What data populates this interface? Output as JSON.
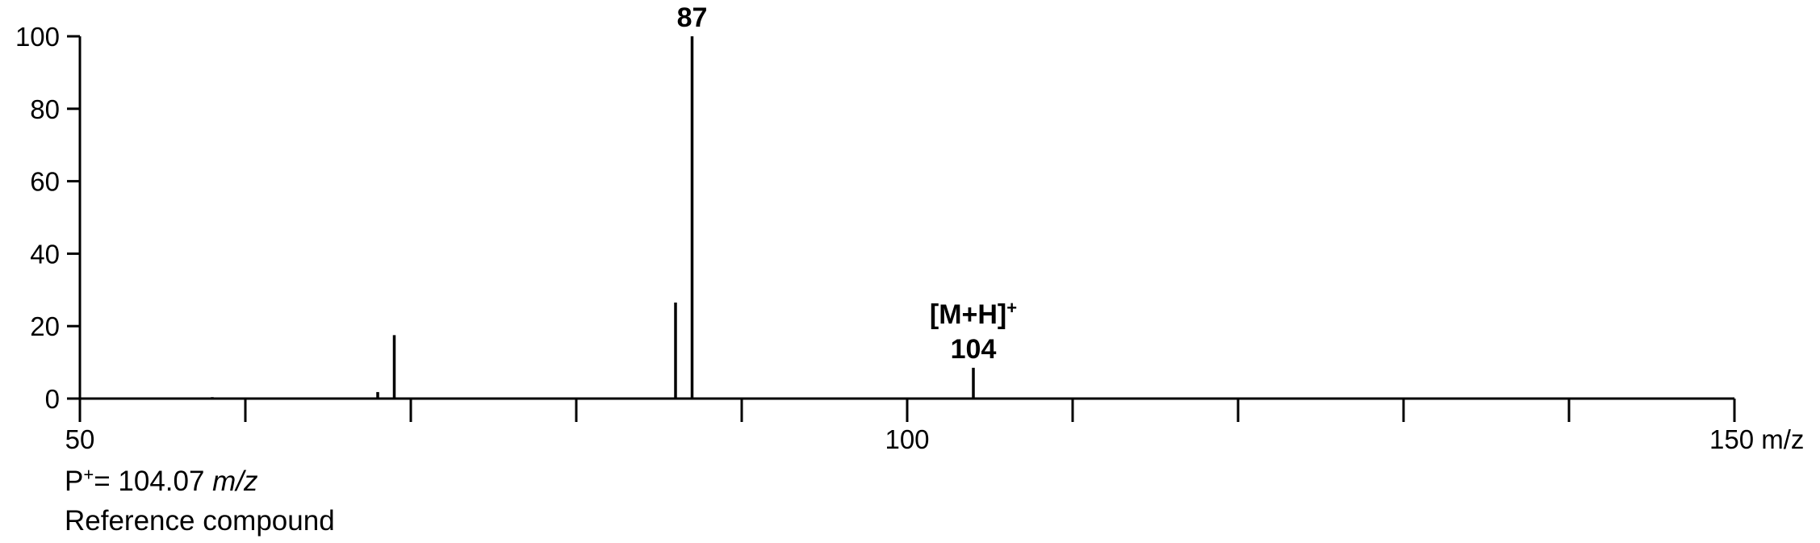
{
  "chart_data": {
    "type": "bar",
    "title": "",
    "xlabel": "",
    "ylabel": "",
    "xlim": [
      50,
      150
    ],
    "ylim": [
      0,
      100
    ],
    "x_ticks_major": [
      50,
      100,
      150
    ],
    "x_tick_labels": [
      "50",
      "100",
      "150 m/z"
    ],
    "x_ticks_minor": [
      60,
      70,
      80,
      90,
      110,
      120,
      130,
      140
    ],
    "y_ticks": [
      0,
      20,
      40,
      60,
      80,
      100
    ],
    "y_tick_labels": [
      "0",
      "20",
      "40",
      "60",
      "80",
      "100"
    ],
    "grid": false,
    "peaks": [
      {
        "x": 58,
        "y": 0.4
      },
      {
        "x": 68,
        "y": 1.8
      },
      {
        "x": 69,
        "y": 17.5
      },
      {
        "x": 86,
        "y": 26.5
      },
      {
        "x": 87,
        "y": 100
      },
      {
        "x": 104,
        "y": 8.5
      }
    ],
    "annotations": [
      {
        "x": 87,
        "y": 100,
        "lines": [
          "87"
        ]
      },
      {
        "x": 104,
        "y": 8.5,
        "lines": [
          "[M+H]",
          "104"
        ],
        "superscript": "+"
      }
    ]
  },
  "notes": {
    "parent_ion_prefix": "P",
    "parent_ion_sup": "+",
    "parent_ion_value": "= 104.07 ",
    "parent_ion_unit": "m/z",
    "compound": "Reference compound"
  }
}
